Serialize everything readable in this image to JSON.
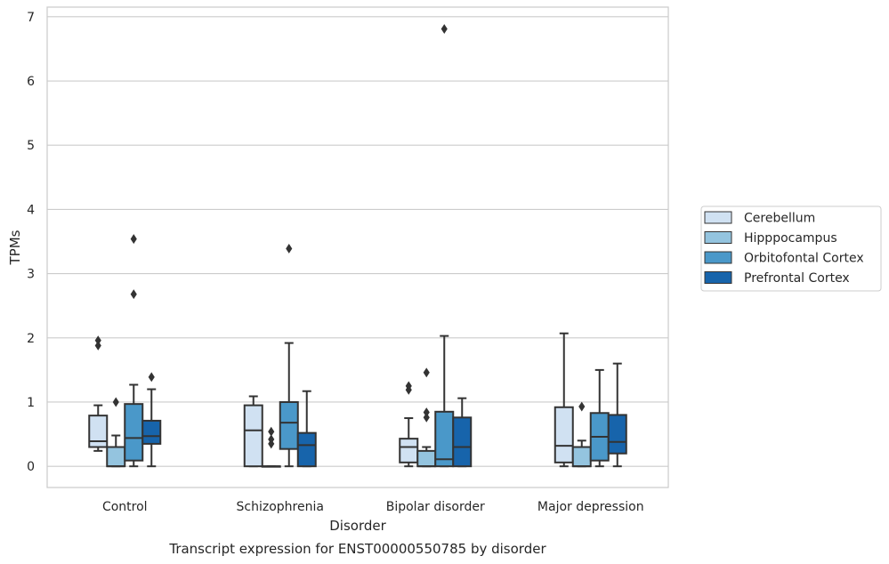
{
  "chart_data": {
    "type": "box",
    "title": "Transcript expression for ENST00000550785 by disorder",
    "xlabel": "Disorder",
    "ylabel": "TPMs",
    "categories": [
      "Control",
      "Schizophrenia",
      "Bipolar disorder",
      "Major depression"
    ],
    "ylim": [
      -0.33,
      7.15
    ],
    "yticks": [
      0,
      1,
      2,
      3,
      4,
      5,
      6,
      7
    ],
    "grid": true,
    "legend_position": "right",
    "colors": {
      "Cerebellum": "#d0e1f2",
      "Hipppocampus": "#94c4df",
      "Orbitofontal Cortex": "#4a98c9",
      "Prefrontal Cortex": "#1764ab",
      "outline": "#333333",
      "grid": "#cccccc"
    },
    "series": [
      {
        "name": "Cerebellum",
        "boxes": [
          {
            "min": 0.24,
            "q1": 0.3,
            "median": 0.39,
            "q3": 0.79,
            "max": 0.95,
            "outliers": [
              1.88,
              1.96
            ]
          },
          {
            "min": 0.0,
            "q1": 0.0,
            "median": 0.56,
            "q3": 0.95,
            "max": 1.09,
            "outliers": []
          },
          {
            "min": 0.0,
            "q1": 0.06,
            "median": 0.3,
            "q3": 0.43,
            "max": 0.75,
            "outliers": [
              1.19,
              1.25
            ]
          },
          {
            "min": 0.0,
            "q1": 0.06,
            "median": 0.32,
            "q3": 0.92,
            "max": 2.07,
            "outliers": []
          }
        ]
      },
      {
        "name": "Hipppocampus",
        "boxes": [
          {
            "min": 0.0,
            "q1": 0.0,
            "median": 0.0,
            "q3": 0.3,
            "max": 0.48,
            "outliers": [
              1.0
            ]
          },
          {
            "min": 0.0,
            "q1": 0.0,
            "median": 0.0,
            "q3": 0.0,
            "max": 0.0,
            "outliers": [
              0.35,
              0.42,
              0.54
            ]
          },
          {
            "min": 0.0,
            "q1": 0.0,
            "median": 0.0,
            "q3": 0.24,
            "max": 0.3,
            "outliers": [
              0.76,
              0.84,
              1.46
            ]
          },
          {
            "min": 0.0,
            "q1": 0.0,
            "median": 0.0,
            "q3": 0.3,
            "max": 0.4,
            "outliers": [
              0.93
            ]
          }
        ]
      },
      {
        "name": "Orbitofontal Cortex",
        "boxes": [
          {
            "min": 0.0,
            "q1": 0.09,
            "median": 0.44,
            "q3": 0.97,
            "max": 1.27,
            "outliers": [
              2.68,
              3.54
            ]
          },
          {
            "min": 0.0,
            "q1": 0.27,
            "median": 0.68,
            "q3": 1.0,
            "max": 1.92,
            "outliers": [
              3.39
            ]
          },
          {
            "min": 0.0,
            "q1": 0.0,
            "median": 0.11,
            "q3": 0.85,
            "max": 2.03,
            "outliers": [
              6.81
            ]
          },
          {
            "min": 0.0,
            "q1": 0.09,
            "median": 0.46,
            "q3": 0.83,
            "max": 1.5,
            "outliers": []
          }
        ]
      },
      {
        "name": "Prefrontal Cortex",
        "boxes": [
          {
            "min": 0.0,
            "q1": 0.35,
            "median": 0.47,
            "q3": 0.71,
            "max": 1.2,
            "outliers": [
              1.39
            ]
          },
          {
            "min": 0.0,
            "q1": 0.0,
            "median": 0.33,
            "q3": 0.52,
            "max": 1.17,
            "outliers": []
          },
          {
            "min": 0.0,
            "q1": 0.0,
            "median": 0.3,
            "q3": 0.76,
            "max": 1.06,
            "outliers": []
          },
          {
            "min": 0.0,
            "q1": 0.2,
            "median": 0.38,
            "q3": 0.8,
            "max": 1.6,
            "outliers": []
          }
        ]
      }
    ]
  }
}
